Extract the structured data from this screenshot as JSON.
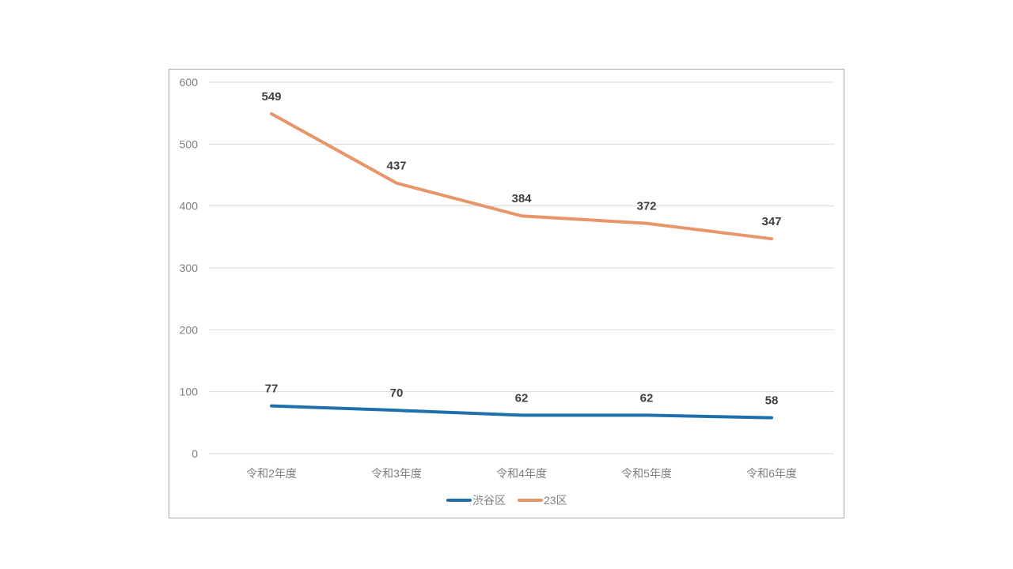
{
  "chart_data": {
    "type": "line",
    "title": "",
    "xlabel": "",
    "ylabel": "",
    "categories": [
      "令和2年度",
      "令和3年度",
      "令和4年度",
      "令和5年度",
      "令和6年度"
    ],
    "ylim": [
      0,
      600
    ],
    "yticks": [
      0,
      100,
      200,
      300,
      400,
      500,
      600
    ],
    "grid": true,
    "legend_position": "bottom",
    "series": [
      {
        "name": "渋谷区",
        "color": "#1f6fad",
        "values": [
          77,
          70,
          62,
          62,
          58
        ],
        "labels": [
          "77",
          "70",
          "62",
          "62",
          "58"
        ]
      },
      {
        "name": "23区",
        "color": "#e8956a",
        "values": [
          549,
          437,
          384,
          372,
          347
        ],
        "labels": [
          "549",
          "437",
          "384",
          "372",
          "347"
        ]
      }
    ]
  }
}
